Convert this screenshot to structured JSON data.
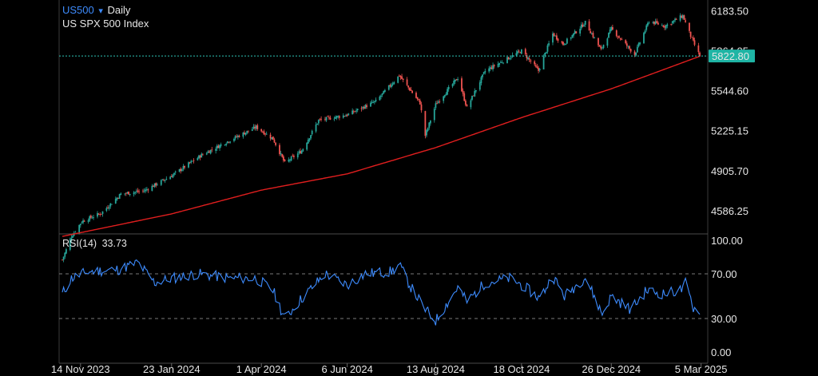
{
  "header": {
    "symbol": "US500",
    "dropdown_glyph": "▾",
    "interval": "Daily",
    "name": "US SPX 500 Index"
  },
  "rsi_panel": {
    "label": "RSI(14)",
    "value": "33.73"
  },
  "colors": {
    "background": "#000000",
    "up_candle": "#26a69a",
    "down_candle": "#ef5350",
    "moving_average": "#e01e1e",
    "rsi_line": "#3d8bfd",
    "last_price_badge": "#1fb5a5",
    "symbol_text": "#3d8bfd",
    "grid_dash": "#8a8a8a"
  },
  "chart_data": [
    {
      "type": "candlestick",
      "title": "US SPX 500 Index",
      "interval": "Daily",
      "y_ticks": [
        "6183.50",
        "5864.05",
        "5544.60",
        "5225.15",
        "4905.70",
        "4586.25"
      ],
      "ylim": [
        4400,
        6270
      ],
      "last_price": "5822.80",
      "x_tick_labels": [
        "14 Nov 2023",
        "23 Jan 2024",
        "1 Apr 2024",
        "6 Jun 2024",
        "13 Aug 2024",
        "18 Oct 2024",
        "26 Dec 2024",
        "5 Mar 2025"
      ],
      "x_tick_dates": [
        "2023-11-14",
        "2024-01-23",
        "2024-04-01",
        "2024-06-06",
        "2024-08-13",
        "2024-10-18",
        "2024-12-26",
        "2025-03-05"
      ],
      "date_range": [
        "2023-10-31",
        "2025-03-04"
      ],
      "price_close_keypoints": {
        "dates": [
          "2023-10-31",
          "2023-11-07",
          "2023-11-15",
          "2023-11-30",
          "2023-12-15",
          "2024-01-02",
          "2024-01-23",
          "2024-02-15",
          "2024-03-08",
          "2024-03-28",
          "2024-04-10",
          "2024-04-19",
          "2024-05-02",
          "2024-05-15",
          "2024-06-06",
          "2024-06-28",
          "2024-07-16",
          "2024-08-01",
          "2024-08-05",
          "2024-08-13",
          "2024-08-30",
          "2024-09-06",
          "2024-09-20",
          "2024-10-18",
          "2024-10-31",
          "2024-11-11",
          "2024-11-19",
          "2024-12-06",
          "2024-12-18",
          "2024-12-26",
          "2025-01-13",
          "2025-01-24",
          "2025-02-05",
          "2025-02-19",
          "2025-02-26",
          "2025-03-04"
        ],
        "values": [
          4193,
          4380,
          4500,
          4567,
          4719,
          4745,
          4865,
          5030,
          5150,
          5254,
          5160,
          4967,
          5064,
          5308,
          5352,
          5460,
          5667,
          5446,
          5186,
          5434,
          5648,
          5408,
          5702,
          5864,
          5705,
          6000,
          5916,
          6090,
          5872,
          6040,
          5836,
          6101,
          6061,
          6144,
          5956,
          5822
        ]
      },
      "moving_average_keypoints": {
        "dates": [
          "2023-10-31",
          "2024-01-23",
          "2024-04-01",
          "2024-06-06",
          "2024-08-13",
          "2024-10-18",
          "2024-12-26",
          "2025-03-04"
        ],
        "values": [
          4380,
          4560,
          4750,
          4880,
          5090,
          5330,
          5560,
          5820
        ]
      }
    },
    {
      "type": "line",
      "title": "RSI(14)",
      "y_ticks": [
        "100.00",
        "70.00",
        "30.00",
        "0.00"
      ],
      "ylim": [
        0,
        100
      ],
      "reference_lines": [
        70,
        30
      ],
      "current_value": 33.73,
      "rsi_keypoints": {
        "dates": [
          "2023-10-31",
          "2023-11-07",
          "2023-11-20",
          "2023-12-14",
          "2023-12-28",
          "2024-01-10",
          "2024-01-23",
          "2024-02-12",
          "2024-03-08",
          "2024-03-28",
          "2024-04-10",
          "2024-04-19",
          "2024-05-02",
          "2024-05-20",
          "2024-06-06",
          "2024-06-20",
          "2024-07-10",
          "2024-07-16",
          "2024-07-25",
          "2024-08-05",
          "2024-08-13",
          "2024-08-30",
          "2024-09-06",
          "2024-09-20",
          "2024-10-10",
          "2024-10-18",
          "2024-11-01",
          "2024-11-11",
          "2024-11-20",
          "2024-12-06",
          "2024-12-19",
          "2024-12-26",
          "2025-01-10",
          "2025-01-22",
          "2025-02-05",
          "2025-02-19",
          "2025-02-21",
          "2025-02-27",
          "2025-03-04"
        ],
        "values": [
          52,
          66,
          72,
          74,
          80,
          62,
          66,
          70,
          66,
          66,
          55,
          30,
          48,
          70,
          60,
          70,
          72,
          78,
          58,
          38,
          28,
          58,
          45,
          62,
          66,
          60,
          48,
          68,
          50,
          67,
          34,
          50,
          38,
          55,
          52,
          56,
          62,
          40,
          33.73
        ]
      }
    }
  ]
}
